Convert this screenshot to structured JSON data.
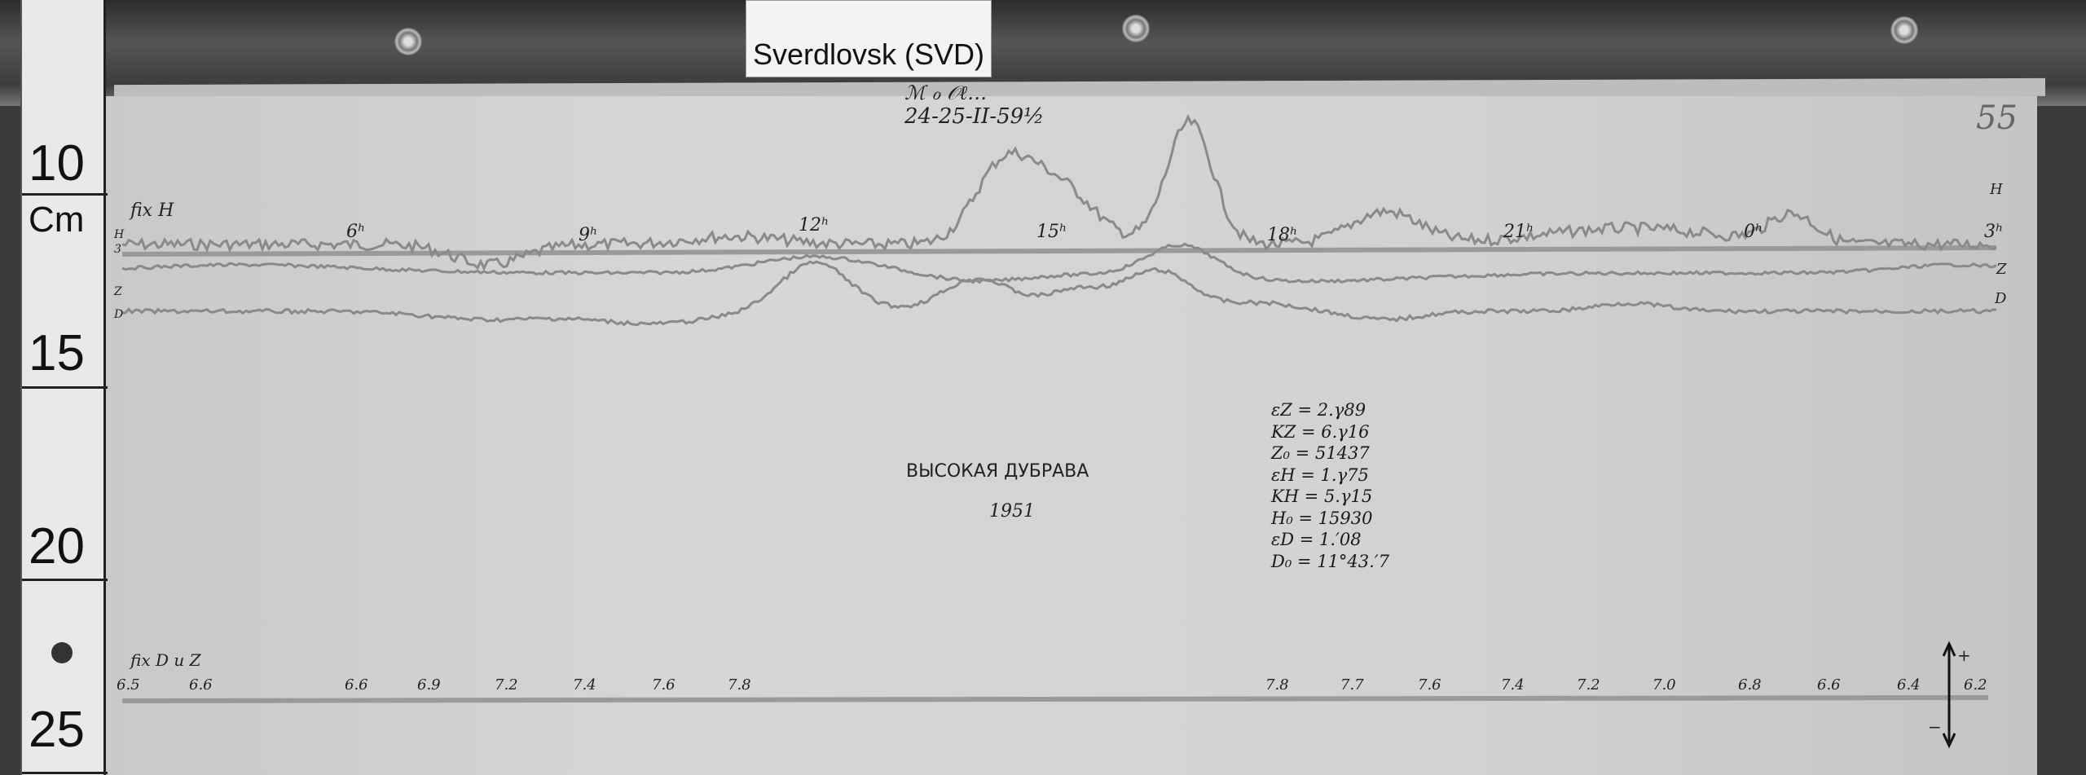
{
  "label_card": "Sverdlovsk (SVD)",
  "ruler": {
    "unit": "Cm",
    "marks": [
      "10",
      "15",
      "20",
      "25"
    ]
  },
  "header": {
    "line1": "ℳ ℴ 𝒪ℓ…",
    "date": "24-25-II-59½",
    "page": "55"
  },
  "hour_marks": [
    "fix H",
    "6ʰ",
    "9ʰ",
    "12ʰ",
    "15ʰ",
    "18ʰ",
    "21ʰ",
    "0ʰ",
    "3ʰ"
  ],
  "trace_labels": {
    "H": "H",
    "Z": "Z",
    "D": "D",
    "left_H": "H",
    "left_3": "3",
    "left_Z": "Z",
    "left_D": "D"
  },
  "title": {
    "station": "ВЫСОКАЯ ДУБРАВА",
    "year": "1951"
  },
  "constants": [
    "εZ = 2.γ89",
    "KZ = 6.γ16",
    "Z₀ = 51437",
    "εH = 1.γ75",
    "KH = 5.γ15",
    "H₀ = 15930",
    "εD = 1.′08",
    "D₀ = 11°43.′7"
  ],
  "baseline": {
    "label": "fix D u Z",
    "values": [
      "6.5",
      "6.6",
      "6.6",
      "6.9",
      "7.2",
      "7.4",
      "7.6",
      "7.8",
      "7.8",
      "7.7",
      "7.6",
      "7.4",
      "7.2",
      "7.0",
      "6.8",
      "6.6",
      "6.4",
      "6.2"
    ],
    "plus": "+",
    "minus": "−"
  }
}
